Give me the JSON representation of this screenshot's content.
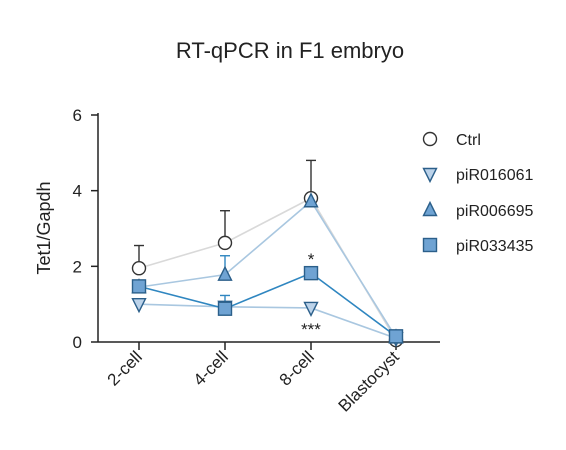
{
  "chart_data": {
    "type": "line",
    "title": "RT-qPCR in F1 embryo",
    "xlabel": "",
    "ylabel": "Tet1/Gapdh",
    "categories": [
      "2-cell",
      "4-cell",
      "8-cell",
      "Blastocyst"
    ],
    "ylim": [
      0,
      6
    ],
    "yticks": [
      0,
      2,
      4,
      6
    ],
    "grid": false,
    "legend_position": "right",
    "series": [
      {
        "name": "Ctrl",
        "marker": "circle",
        "line_color": "#d9d9d9",
        "fill": "#ffffff",
        "values": [
          1.95,
          2.62,
          3.8,
          0.05
        ],
        "error": [
          0.6,
          0.85,
          1.0,
          0
        ]
      },
      {
        "name": "piR016061",
        "marker": "triangle-down",
        "line_color": "#a9c7e0",
        "fill": "#bcd3ea",
        "values": [
          1.0,
          0.93,
          0.9,
          0.1
        ],
        "error": [
          0,
          0.1,
          0,
          0
        ]
      },
      {
        "name": "piR006695",
        "marker": "triangle-up",
        "line_color": "#a9c7e0",
        "fill": "#6fa3d3",
        "values": [
          1.45,
          1.78,
          3.72,
          0.12
        ],
        "error": [
          0,
          0.5,
          0,
          0
        ]
      },
      {
        "name": "piR033435",
        "marker": "square",
        "line_color": "#2f86c0",
        "fill": "#6fa3d3",
        "values": [
          1.47,
          0.88,
          1.82,
          0.15
        ],
        "error": [
          0.15,
          0.35,
          0.15,
          0
        ]
      }
    ],
    "annotations": [
      {
        "text": "*",
        "category": "8-cell",
        "y": 2.2
      },
      {
        "text": "***",
        "category": "8-cell",
        "y": 0.35
      }
    ]
  }
}
